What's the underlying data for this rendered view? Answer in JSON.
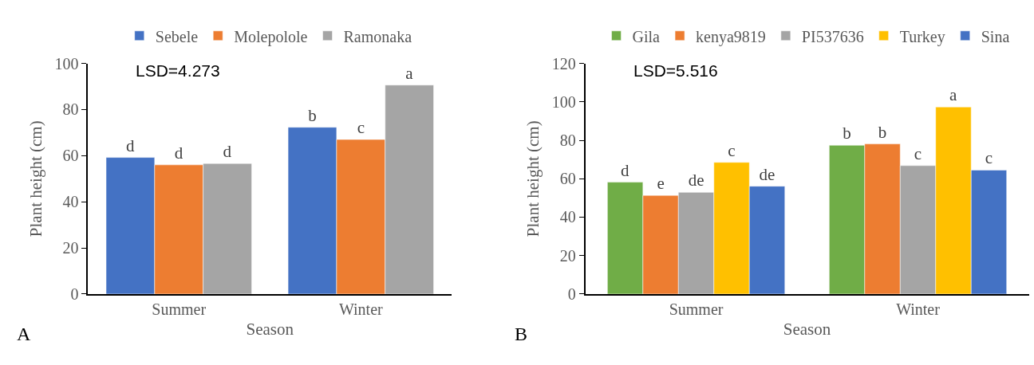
{
  "chart_data": [
    {
      "type": "bar",
      "xlabel": "Season",
      "ylabel": "Plant height (cm)",
      "categories": [
        "Summer",
        "Winter"
      ],
      "ylim": [
        0,
        100
      ],
      "yticks": [
        0,
        20,
        40,
        60,
        80,
        100
      ],
      "legend": "top",
      "annotations": [
        "LSD=4.273",
        "A"
      ],
      "series": [
        {
          "name": "Sebele",
          "color": "#4472c4",
          "values": [
            59.2,
            72.3
          ],
          "value_labels": [
            "d",
            "b"
          ]
        },
        {
          "name": "Molepolole",
          "color": "#ed7d31",
          "values": [
            56.0,
            67.0
          ],
          "value_labels": [
            "d",
            "c"
          ]
        },
        {
          "name": "Ramonaka",
          "color": "#a5a5a5",
          "values": [
            56.6,
            90.6
          ],
          "value_labels": [
            "d",
            "a"
          ]
        }
      ]
    },
    {
      "type": "bar",
      "xlabel": "Season",
      "ylabel": "Plant height (cm)",
      "categories": [
        "Summer",
        "Winter"
      ],
      "ylim": [
        0,
        120
      ],
      "yticks": [
        0,
        20,
        40,
        60,
        80,
        100,
        120
      ],
      "legend": "top",
      "annotations": [
        "LSD=5.516",
        "B"
      ],
      "series": [
        {
          "name": "Gila",
          "color": "#70ad47",
          "values": [
            58.2,
            77.4
          ],
          "value_labels": [
            "d",
            "b"
          ]
        },
        {
          "name": "kenya9819",
          "color": "#ed7d31",
          "values": [
            51.3,
            78.1
          ],
          "value_labels": [
            "e",
            "b"
          ]
        },
        {
          "name": "PI537636",
          "color": "#a5a5a5",
          "values": [
            52.9,
            66.8
          ],
          "value_labels": [
            "de",
            "c"
          ]
        },
        {
          "name": "Turkey",
          "color": "#ffc000",
          "values": [
            68.5,
            97.3
          ],
          "value_labels": [
            "c",
            "a"
          ]
        },
        {
          "name": "Sina",
          "color": "#4472c4",
          "values": [
            56.1,
            64.5
          ],
          "value_labels": [
            "de",
            "c"
          ]
        }
      ]
    }
  ]
}
